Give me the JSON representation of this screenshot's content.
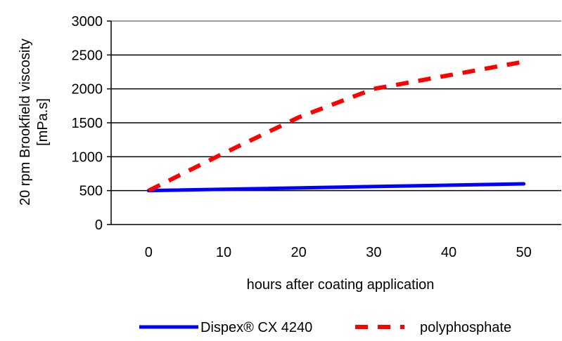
{
  "chart_data": {
    "type": "line",
    "title": "",
    "xlabel": "hours after coating application",
    "ylabel_line1": "20 rpm Brookfield viscosity",
    "ylabel_line2": "[mPa.s]",
    "xlim": [
      -5,
      55
    ],
    "ylim": [
      0,
      3000
    ],
    "x_ticks": [
      0,
      10,
      20,
      30,
      40,
      50
    ],
    "y_ticks": [
      0,
      500,
      1000,
      1500,
      2000,
      2500,
      3000
    ],
    "grid": "horizontal",
    "legend_position": "bottom",
    "series": [
      {
        "name": "Dispex® CX 4240",
        "color": "#0000ff",
        "style": "solid",
        "x": [
          0,
          50
        ],
        "y": [
          500,
          600
        ]
      },
      {
        "name": "polyphosphate",
        "color": "#ff0000",
        "style": "dashed",
        "x": [
          0,
          10,
          20,
          30,
          40,
          50
        ],
        "y": [
          500,
          1050,
          1580,
          2000,
          2200,
          2400
        ]
      }
    ]
  }
}
